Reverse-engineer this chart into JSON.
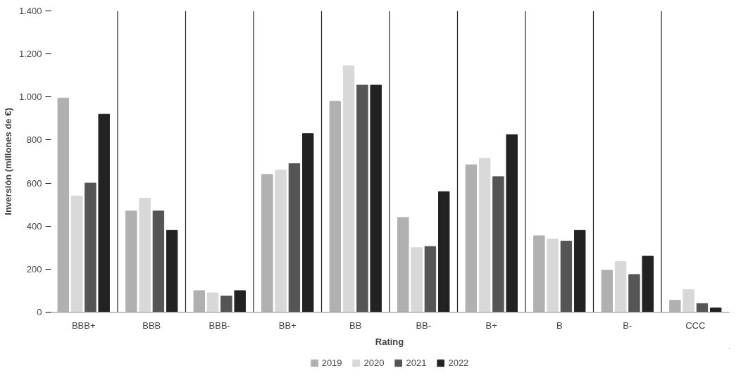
{
  "chart_data": {
    "type": "bar",
    "xlabel": "Rating",
    "ylabel": "Inversión (millones de €)",
    "categories": [
      "BBB+",
      "BBB",
      "BBB-",
      "BB+",
      "BB",
      "BB-",
      "B+",
      "B",
      "B-",
      "CCC"
    ],
    "series": [
      {
        "name": "2019",
        "color": "#b0b0b0",
        "values": [
          995,
          470,
          100,
          640,
          980,
          440,
          685,
          355,
          195,
          55
        ]
      },
      {
        "name": "2020",
        "color": "#d8d8d8",
        "values": [
          540,
          530,
          90,
          660,
          1145,
          300,
          715,
          340,
          235,
          105
        ]
      },
      {
        "name": "2021",
        "color": "#555555",
        "values": [
          600,
          470,
          75,
          690,
          1055,
          305,
          630,
          330,
          175,
          40
        ]
      },
      {
        "name": "2022",
        "color": "#222222",
        "values": [
          920,
          380,
          100,
          830,
          1055,
          560,
          825,
          380,
          260,
          20
        ]
      }
    ],
    "ylim": [
      0,
      1400
    ],
    "yticks": [
      0,
      200,
      400,
      600,
      800,
      {
        "value": 1000,
        "label": "1.000"
      },
      {
        "value": 1200,
        "label": "1.200"
      },
      {
        "value": 1400,
        "label": "1.400"
      }
    ],
    "grid": "x",
    "legend": "bottom"
  }
}
